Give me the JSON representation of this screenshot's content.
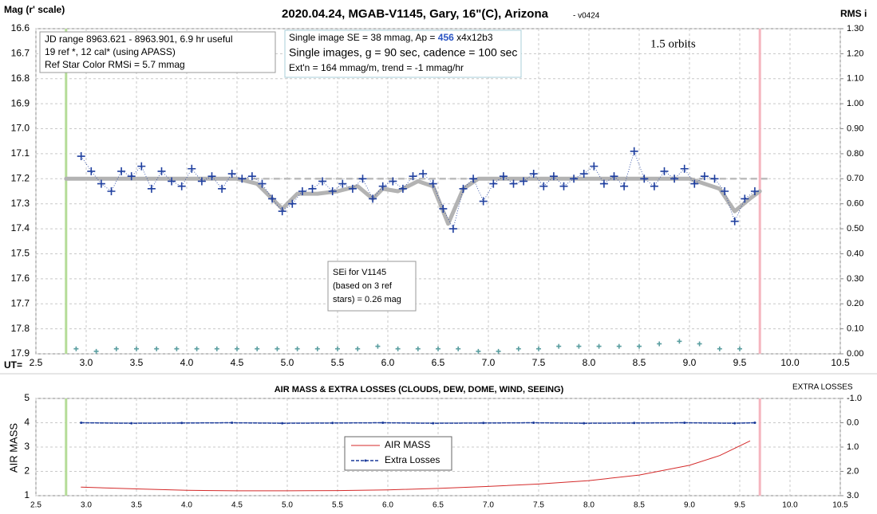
{
  "chart_data": [
    {
      "type": "scatter",
      "title": "2020.04.24, MGAB-V1145, Gary, 16\"(C), Arizona",
      "title_suffix": "- v0424",
      "ylabel": "Mag (r' scale)",
      "y2label": "RMS i",
      "xlabel": "UT=",
      "xlim": [
        2.5,
        10.5
      ],
      "xticks": [
        2.5,
        {
          "value": 3,
          "label": "3.0"
        },
        3.5,
        {
          "value": 4,
          "label": "4.0"
        },
        4.5,
        {
          "value": 5,
          "label": "5.0"
        },
        5.5,
        {
          "value": 6,
          "label": "6.0"
        },
        6.5,
        {
          "value": 7,
          "label": "7.0"
        },
        7.5,
        {
          "value": 8,
          "label": "8.0"
        },
        8.5,
        {
          "value": 9,
          "label": "9.0"
        },
        9.5,
        {
          "value": 10,
          "label": "10.0"
        },
        10.5
      ],
      "ylim": [
        17.9,
        16.6
      ],
      "yticks": [
        16.6,
        16.7,
        16.8,
        16.9,
        {
          "value": 17,
          "label": "17.0"
        },
        17.1,
        17.2,
        17.3,
        17.4,
        17.5,
        17.6,
        17.7,
        17.8,
        17.9
      ],
      "y2lim": [
        0,
        1.3
      ],
      "y2ticks": [
        {
          "value": 0,
          "label": "0.00"
        },
        {
          "value": 0.1,
          "label": "0.10"
        },
        {
          "value": 0.2,
          "label": "0.20"
        },
        {
          "value": 0.3,
          "label": "0.30"
        },
        {
          "value": 0.4,
          "label": "0.40"
        },
        {
          "value": 0.5,
          "label": "0.50"
        },
        {
          "value": 0.6,
          "label": "0.60"
        },
        {
          "value": 0.7,
          "label": "0.70"
        },
        {
          "value": 0.8,
          "label": "0.80"
        },
        {
          "value": 0.9,
          "label": "0.90"
        },
        {
          "value": 1,
          "label": "1.00"
        },
        {
          "value": 1.1,
          "label": "1.10"
        },
        {
          "value": 1.2,
          "label": "1.20"
        },
        {
          "value": 1.3,
          "label": "1.30"
        }
      ],
      "grid": true,
      "vlines": [
        {
          "x": 2.8,
          "color": "#b5dc98"
        },
        {
          "x": 9.7,
          "color": "#f5b5bf"
        }
      ],
      "hlines": [
        {
          "y": 17.2,
          "color": "#bdbdbd"
        }
      ],
      "series": [
        {
          "style": "line",
          "color": "#b3b3b3",
          "width": 5,
          "x": [
            2.8,
            4.5,
            4.7,
            4.95,
            5.1,
            5.3,
            5.5,
            5.7,
            5.85,
            5.95,
            6.1,
            6.3,
            6.45,
            6.6,
            6.75,
            6.9,
            9.0,
            9.3,
            9.45,
            9.6,
            9.7
          ],
          "values": [
            17.2,
            17.2,
            17.22,
            17.32,
            17.26,
            17.26,
            17.25,
            17.23,
            17.28,
            17.24,
            17.25,
            17.21,
            17.23,
            17.38,
            17.24,
            17.2,
            17.2,
            17.24,
            17.33,
            17.28,
            17.25
          ]
        },
        {
          "style": "cross",
          "color": "#1f3f9f",
          "size": 5,
          "connect": true,
          "x": [
            2.95,
            3.05,
            3.15,
            3.25,
            3.35,
            3.45,
            3.55,
            3.65,
            3.75,
            3.85,
            3.95,
            4.05,
            4.15,
            4.25,
            4.35,
            4.45,
            4.55,
            4.65,
            4.75,
            4.85,
            4.95,
            5.05,
            5.15,
            5.25,
            5.35,
            5.45,
            5.55,
            5.65,
            5.75,
            5.85,
            5.95,
            6.05,
            6.15,
            6.25,
            6.35,
            6.45,
            6.55,
            6.65,
            6.75,
            6.85,
            6.95,
            7.05,
            7.15,
            7.25,
            7.35,
            7.45,
            7.55,
            7.65,
            7.75,
            7.85,
            7.95,
            8.05,
            8.15,
            8.25,
            8.35,
            8.45,
            8.55,
            8.65,
            8.75,
            8.85,
            8.95,
            9.05,
            9.15,
            9.25,
            9.35,
            9.45,
            9.55,
            9.65
          ],
          "values": [
            17.11,
            17.17,
            17.22,
            17.25,
            17.17,
            17.19,
            17.15,
            17.24,
            17.17,
            17.21,
            17.23,
            17.16,
            17.21,
            17.19,
            17.24,
            17.18,
            17.2,
            17.19,
            17.22,
            17.28,
            17.33,
            17.3,
            17.25,
            17.24,
            17.21,
            17.25,
            17.22,
            17.24,
            17.2,
            17.28,
            17.23,
            17.21,
            17.24,
            17.19,
            17.18,
            17.22,
            17.32,
            17.4,
            17.24,
            17.2,
            17.29,
            17.22,
            17.19,
            17.22,
            17.21,
            17.18,
            17.23,
            17.19,
            17.23,
            17.2,
            17.18,
            17.15,
            17.22,
            17.19,
            17.23,
            17.09,
            17.2,
            17.23,
            17.17,
            17.2,
            17.16,
            17.22,
            17.19,
            17.2,
            17.25,
            17.37,
            17.28,
            17.25
          ]
        },
        {
          "style": "cross",
          "color": "#5a9ea0",
          "size": 3,
          "axis": "y2",
          "x": [
            2.9,
            3.1,
            3.3,
            3.5,
            3.7,
            3.9,
            4.1,
            4.3,
            4.5,
            4.7,
            4.9,
            5.1,
            5.3,
            5.5,
            5.7,
            5.9,
            6.1,
            6.3,
            6.5,
            6.7,
            6.9,
            7.1,
            7.3,
            7.5,
            7.7,
            7.9,
            8.1,
            8.3,
            8.5,
            8.7,
            8.9,
            9.1,
            9.3,
            9.5
          ],
          "values": [
            0.02,
            0.01,
            0.02,
            0.02,
            0.02,
            0.02,
            0.02,
            0.02,
            0.02,
            0.02,
            0.02,
            0.02,
            0.02,
            0.02,
            0.02,
            0.03,
            0.02,
            0.02,
            0.02,
            0.02,
            0.01,
            0.01,
            0.02,
            0.02,
            0.03,
            0.03,
            0.03,
            0.03,
            0.03,
            0.04,
            0.05,
            0.04,
            0.02,
            0.02
          ]
        }
      ],
      "annotations": [
        {
          "lines": [
            "JD range 8963.621 - 8963.901, 6.9 hr useful",
            "19 ref *, 12 cal* (using APASS)",
            "Ref Star Color RMSi = 5.7 mmag"
          ]
        },
        {
          "lines": [
            [
              "Single image SE = 38 mmag, Ap = ",
              "456",
              " x4x12b3"
            ],
            "Single images, g = 90 sec, cadence = 100 sec",
            "Ext'n = 164 mmag/m, trend = -1 mmag/hr"
          ]
        },
        {
          "lines": [
            "1.5 orbits"
          ]
        },
        {
          "lines": [
            "SEi for V1145",
            "(based on 3 ref",
            "stars) = 0.26 mag"
          ]
        }
      ]
    },
    {
      "type": "line",
      "title": "AIR MASS & EXTRA LOSSES (CLOUDS, DEW, DOME, WIND, SEEING)",
      "ylabel": "AIR MASS",
      "y2label": "EXTRA LOSSES",
      "xlim": [
        2.5,
        10.5
      ],
      "xticks": [
        2.5,
        {
          "value": 3,
          "label": "3.0"
        },
        3.5,
        {
          "value": 4,
          "label": "4.0"
        },
        4.5,
        {
          "value": 5,
          "label": "5.0"
        },
        5.5,
        {
          "value": 6,
          "label": "6.0"
        },
        6.5,
        {
          "value": 7,
          "label": "7.0"
        },
        7.5,
        {
          "value": 8,
          "label": "8.0"
        },
        8.5,
        {
          "value": 9,
          "label": "9.0"
        },
        9.5,
        {
          "value": 10,
          "label": "10.0"
        },
        10.5
      ],
      "ylim": [
        1,
        5
      ],
      "yticks": [
        1,
        2,
        3,
        4,
        5
      ],
      "y2lim": [
        3,
        -1
      ],
      "y2ticks": [
        {
          "value": -1,
          "label": "-1.0"
        },
        {
          "value": 0,
          "label": "0.0"
        },
        {
          "value": 1,
          "label": "1.0"
        },
        {
          "value": 2,
          "label": "2.0"
        },
        {
          "value": 3,
          "label": "3.0"
        }
      ],
      "grid": true,
      "vlines": [
        {
          "x": 2.8,
          "color": "#b5dc98"
        },
        {
          "x": 9.7,
          "color": "#f5b5bf"
        }
      ],
      "series": [
        {
          "name": "AIR MASS",
          "style": "line",
          "color": "#d42a2a",
          "width": 1,
          "x": [
            2.95,
            3.5,
            4.0,
            4.5,
            5.0,
            5.5,
            6.0,
            6.5,
            7.0,
            7.5,
            8.0,
            8.5,
            9.0,
            9.3,
            9.6
          ],
          "values": [
            1.35,
            1.28,
            1.22,
            1.2,
            1.2,
            1.21,
            1.24,
            1.3,
            1.38,
            1.48,
            1.62,
            1.85,
            2.25,
            2.65,
            3.25
          ]
        },
        {
          "name": "Extra Losses",
          "style": "dashdot",
          "color": "#1a3a9a",
          "width": 1.5,
          "axis": "y2",
          "x": [
            2.95,
            3.45,
            3.95,
            4.45,
            4.95,
            5.45,
            5.95,
            6.45,
            6.95,
            7.45,
            7.95,
            8.45,
            8.95,
            9.45,
            9.65
          ],
          "values": [
            0.0,
            0.02,
            0.01,
            0.0,
            0.02,
            0.01,
            0.0,
            0.02,
            0.01,
            0.0,
            0.02,
            0.01,
            0.0,
            0.02,
            0.0
          ]
        }
      ]
    }
  ]
}
